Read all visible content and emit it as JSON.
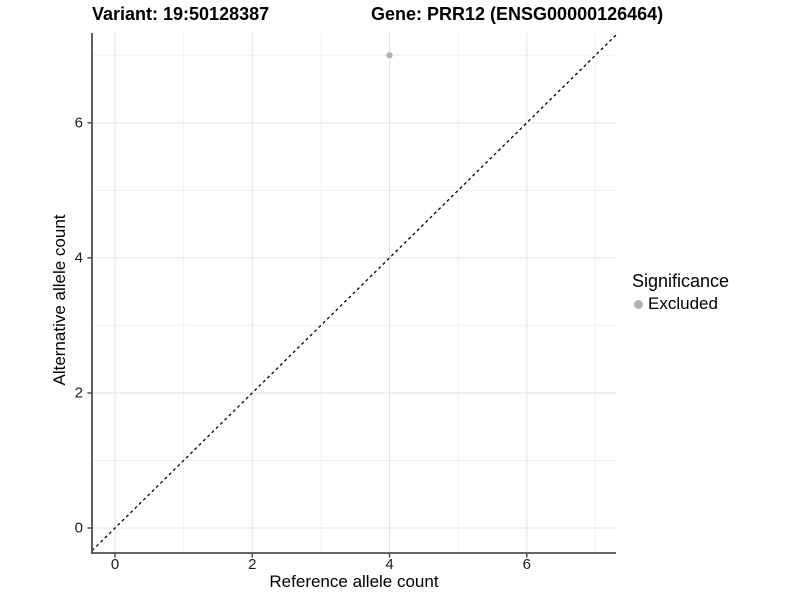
{
  "header": {
    "title_left": "Variant: 19:50128387",
    "title_right": "Gene: PRR12 (ENSG00000126464)"
  },
  "axes": {
    "x": {
      "title": "Reference allele count",
      "tick_labels": [
        "0",
        "2",
        "4",
        "6"
      ]
    },
    "y": {
      "title": "Alternative allele count",
      "tick_labels": [
        "0",
        "2",
        "4",
        "6"
      ]
    }
  },
  "legend": {
    "title": "Significance",
    "items": [
      {
        "label": "Excluded",
        "color": "#b3b3b3"
      }
    ]
  },
  "chart_data": {
    "type": "scatter",
    "title": "Variant: 19:50128387 | Gene: PRR12 (ENSG00000126464)",
    "xlabel": "Reference allele count",
    "ylabel": "Alternative allele count",
    "series": [
      {
        "name": "Excluded",
        "color": "#b3b3b3",
        "points": [
          {
            "x": 4,
            "y": 7
          }
        ]
      }
    ],
    "reference_line": {
      "type": "identity y=x",
      "style": "dashed",
      "color": "#000000"
    },
    "xlim": [
      -0.335,
      7.3
    ],
    "ylim": [
      -0.37,
      7.33
    ],
    "x_major_ticks": [
      0,
      2,
      4,
      6
    ],
    "y_major_ticks": [
      0,
      2,
      4,
      6
    ],
    "x_minor_gridlines": [
      1,
      3,
      5,
      7
    ],
    "y_minor_gridlines": [
      1,
      3,
      5,
      7
    ],
    "grid": true,
    "legend_position": "right-center",
    "point_radius_px": 3.2
  },
  "colors": {
    "background": "#ffffff",
    "grid_major": "#e2e2e2",
    "grid_minor": "#f0f0f0",
    "axis_line": "#4f4f4f",
    "tick_mark": "#4f4f4f",
    "tick_label": "#1c1c1c",
    "dashed_line": "#000000",
    "point": "#b3b3b3"
  }
}
